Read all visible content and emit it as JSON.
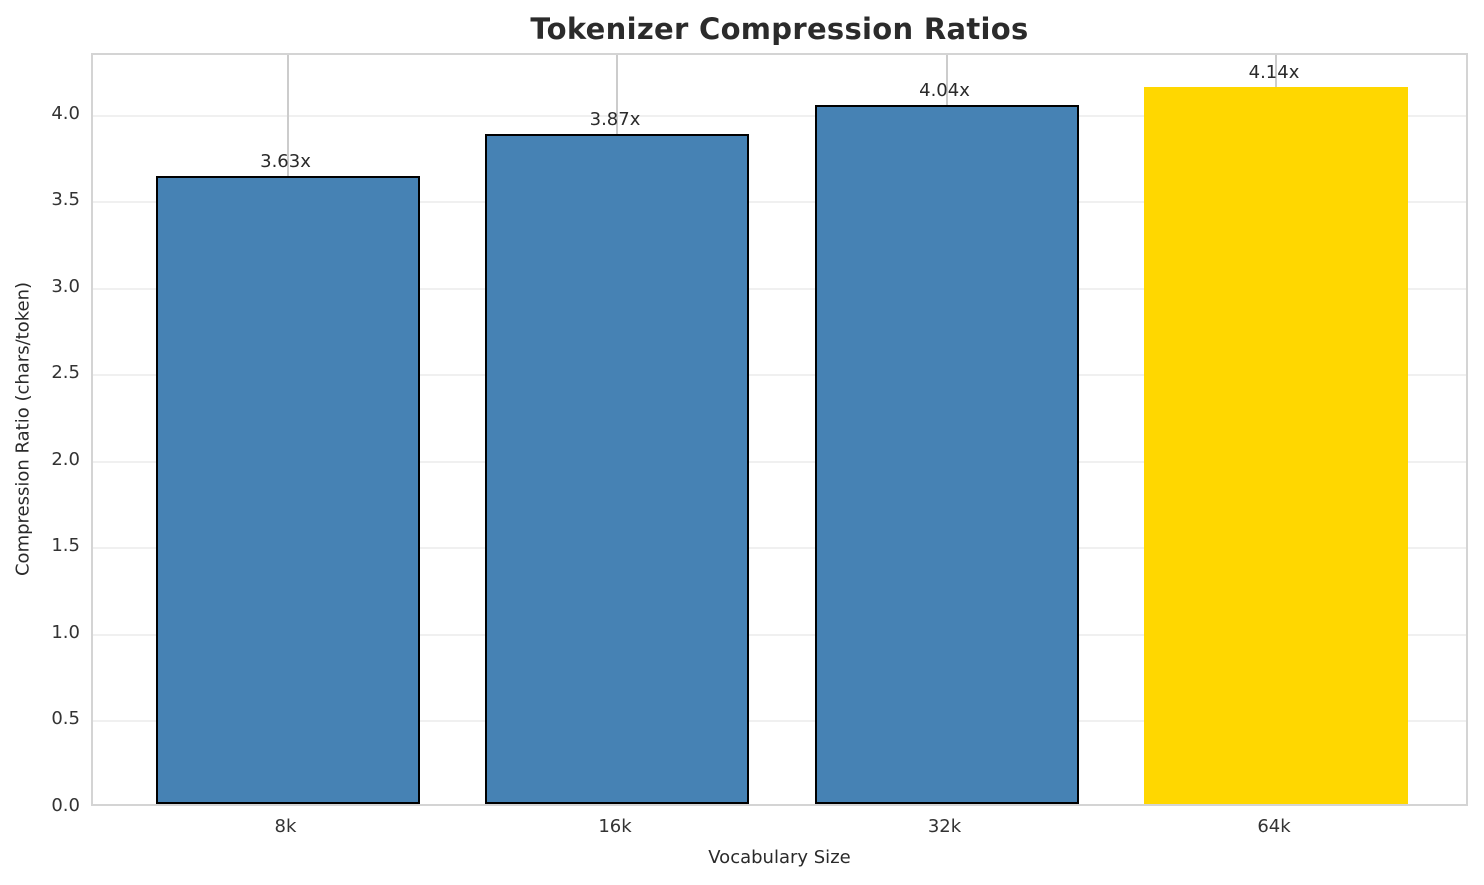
{
  "chart_data": {
    "type": "bar",
    "title": "Tokenizer Compression Ratios",
    "xlabel": "Vocabulary Size",
    "ylabel": "Compression Ratio (chars/token)",
    "categories": [
      "8k",
      "16k",
      "32k",
      "64k"
    ],
    "values": [
      3.63,
      3.87,
      4.04,
      4.14
    ],
    "bar_labels": [
      "3.63x",
      "3.87x",
      "4.04x",
      "4.14x"
    ],
    "bar_colors": [
      "#4682B4",
      "#4682B4",
      "#4682B4",
      "#FFD700"
    ],
    "bar_edge_colors": [
      "#000000",
      "#000000",
      "#000000",
      "none"
    ],
    "ylim": [
      0,
      4.35
    ],
    "yticks": [
      0.0,
      0.5,
      1.0,
      1.5,
      2.0,
      2.5,
      3.0,
      3.5,
      4.0
    ],
    "ytick_labels": [
      "0.0",
      "0.5",
      "1.0",
      "1.5",
      "2.0",
      "2.5",
      "3.0",
      "3.5",
      "4.0"
    ],
    "grid": true,
    "grid_h_color": "#f0f0f0",
    "grid_v_color": "#cccccc",
    "spine_color": "#d4d4d4",
    "legend": "none"
  }
}
